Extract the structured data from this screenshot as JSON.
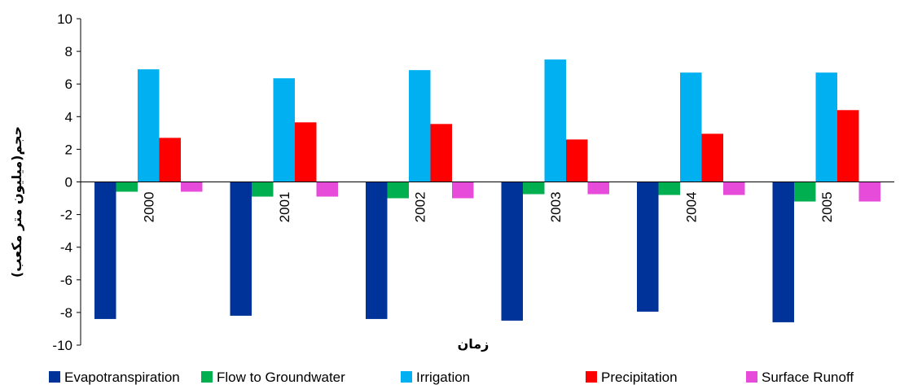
{
  "chart_data": {
    "type": "bar",
    "title": "",
    "xlabel": "زمان",
    "ylabel": "حجم(میلیون متر مکعب)",
    "ylim": [
      -10,
      10
    ],
    "yticks": [
      -10,
      -8,
      -6,
      -4,
      -2,
      0,
      2,
      4,
      6,
      8,
      10
    ],
    "ytick_labels": [
      "-10",
      "-8",
      "-6",
      "-4",
      "-2",
      "0",
      "2",
      "4",
      "6",
      "8",
      "10"
    ],
    "grid": false,
    "legend_position": "bottom",
    "categories": [
      "2000",
      "2001",
      "2002",
      "2003",
      "2004",
      "2005"
    ],
    "series": [
      {
        "name": "Evapotranspiration",
        "color": "#003399",
        "values": [
          -8.4,
          -8.2,
          -8.4,
          -8.5,
          -7.95,
          -8.6
        ]
      },
      {
        "name": "Flow to Groundwater",
        "color": "#00B050",
        "values": [
          -0.6,
          -0.9,
          -1.0,
          -0.75,
          -0.8,
          -1.2
        ]
      },
      {
        "name": "Irrigation",
        "color": "#00B0F0",
        "values": [
          6.9,
          6.35,
          6.85,
          7.5,
          6.7,
          6.7
        ]
      },
      {
        "name": "Precipitation",
        "color": "#FF0000",
        "values": [
          2.7,
          3.65,
          3.55,
          2.6,
          2.95,
          4.4
        ]
      },
      {
        "name": "Surface Runoff",
        "color": "#E64CD9",
        "values": [
          -0.6,
          -0.9,
          -1.0,
          -0.75,
          -0.8,
          -1.2
        ]
      }
    ]
  }
}
